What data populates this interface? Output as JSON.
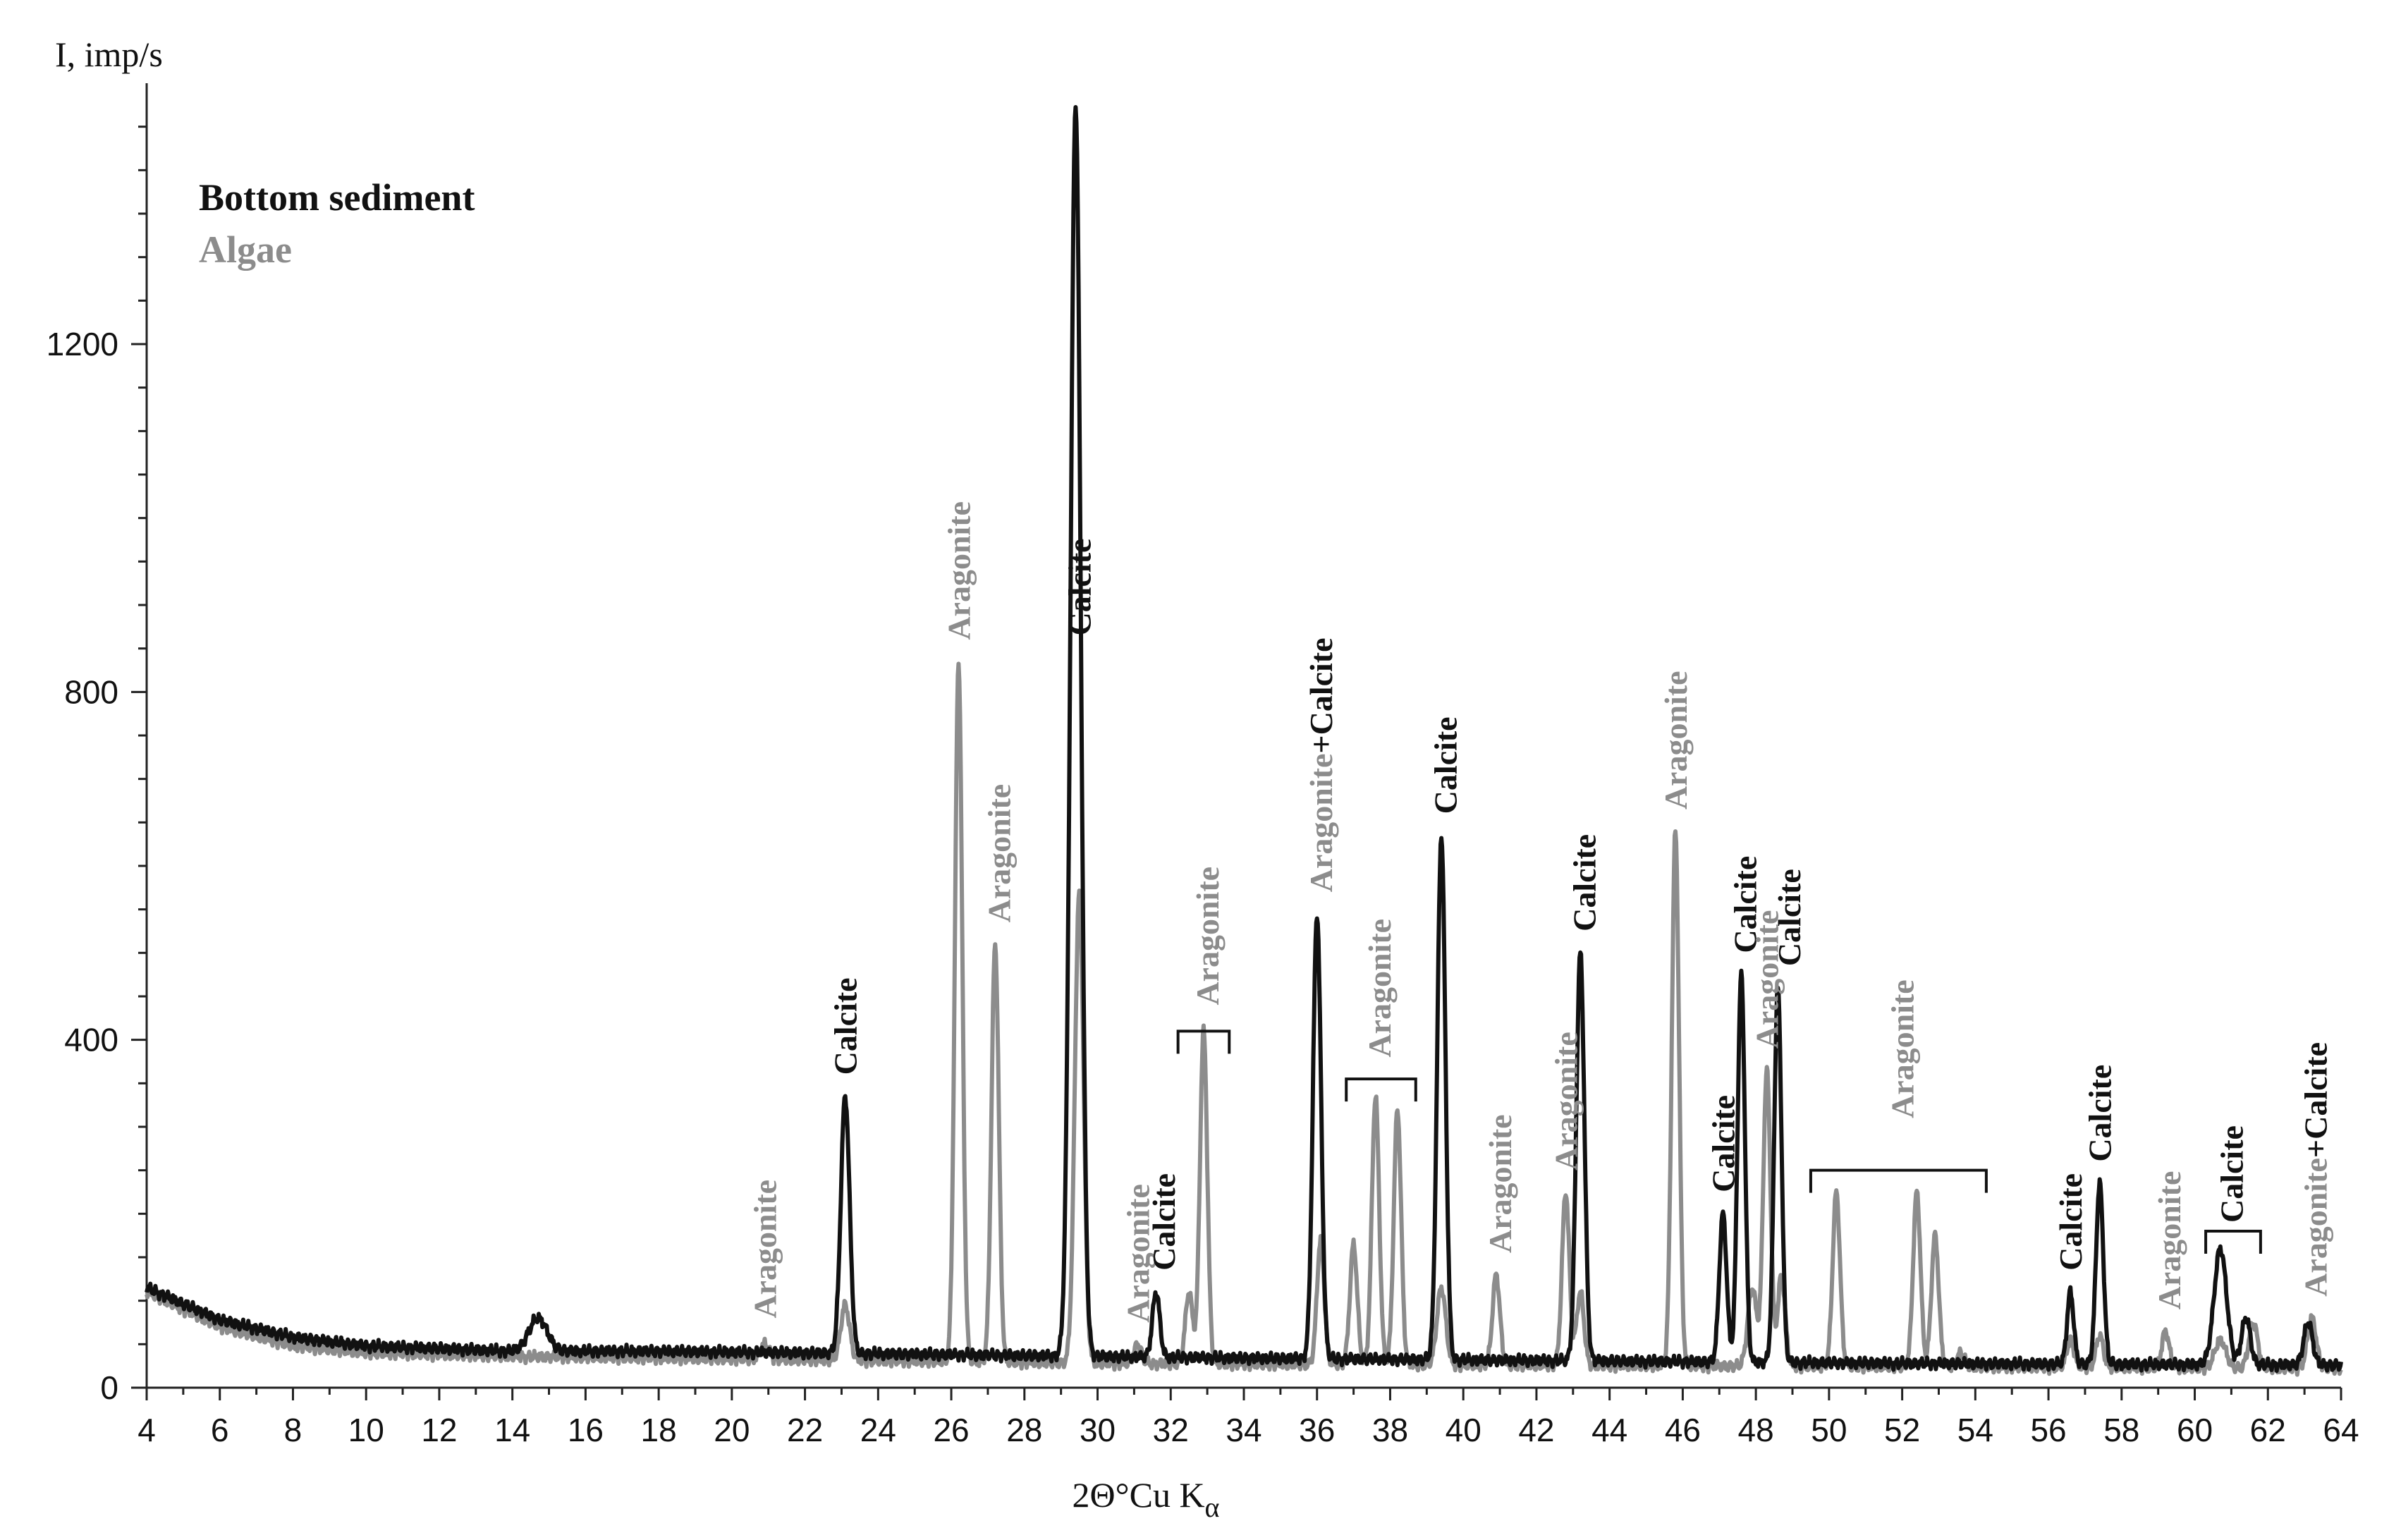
{
  "chart_data": {
    "type": "line",
    "title": "",
    "ylabel": "I, imp/s",
    "xlabel": "2Θ°Cu K",
    "xlabel_subscript": "α",
    "xlim": [
      4,
      64
    ],
    "ylim": [
      0,
      1500
    ],
    "xticks": [
      4,
      6,
      8,
      10,
      12,
      14,
      16,
      18,
      20,
      22,
      24,
      26,
      28,
      30,
      32,
      34,
      36,
      38,
      40,
      42,
      44,
      46,
      48,
      50,
      52,
      54,
      56,
      58,
      60,
      62,
      64
    ],
    "yticks": [
      0,
      400,
      800,
      1200
    ],
    "legend": [
      {
        "name": "Bottom sediment",
        "color": "#111111"
      },
      {
        "name": "Algae",
        "color": "#8c8c8c"
      }
    ],
    "series": [
      {
        "name": "Bottom sediment",
        "color": "#111111",
        "baseline": [
          [
            4,
            115
          ],
          [
            6,
            78
          ],
          [
            8,
            58
          ],
          [
            10,
            48
          ],
          [
            14,
            42
          ],
          [
            18,
            42
          ],
          [
            22,
            40
          ],
          [
            26,
            38
          ],
          [
            30,
            36
          ],
          [
            34,
            34
          ],
          [
            40,
            32
          ],
          [
            46,
            30
          ],
          [
            52,
            28
          ],
          [
            58,
            27
          ],
          [
            64,
            26
          ]
        ],
        "peaks": [
          {
            "x": 14.7,
            "y": 80,
            "w": 0.25
          },
          {
            "x": 23.1,
            "y": 335,
            "w": 0.12
          },
          {
            "x": 29.4,
            "y": 1475,
            "w": 0.14
          },
          {
            "x": 31.6,
            "y": 110,
            "w": 0.1
          },
          {
            "x": 36.0,
            "y": 545,
            "w": 0.11
          },
          {
            "x": 39.4,
            "y": 635,
            "w": 0.11
          },
          {
            "x": 43.2,
            "y": 500,
            "w": 0.11
          },
          {
            "x": 47.1,
            "y": 200,
            "w": 0.1
          },
          {
            "x": 47.6,
            "y": 475,
            "w": 0.1
          },
          {
            "x": 48.6,
            "y": 460,
            "w": 0.1
          },
          {
            "x": 56.6,
            "y": 110,
            "w": 0.09
          },
          {
            "x": 57.4,
            "y": 235,
            "w": 0.1
          },
          {
            "x": 60.7,
            "y": 160,
            "w": 0.17
          },
          {
            "x": 61.4,
            "y": 80,
            "w": 0.12
          },
          {
            "x": 63.1,
            "y": 75,
            "w": 0.12
          }
        ]
      },
      {
        "name": "Algae",
        "color": "#8c8c8c",
        "baseline": [
          [
            4,
            110
          ],
          [
            6,
            70
          ],
          [
            8,
            48
          ],
          [
            10,
            40
          ],
          [
            14,
            36
          ],
          [
            18,
            34
          ],
          [
            22,
            32
          ],
          [
            26,
            30
          ],
          [
            30,
            28
          ],
          [
            34,
            27
          ],
          [
            40,
            26
          ],
          [
            46,
            25
          ],
          [
            52,
            24
          ],
          [
            58,
            23
          ],
          [
            64,
            22
          ]
        ],
        "peaks": [
          {
            "x": 20.9,
            "y": 50,
            "w": 0.12
          },
          {
            "x": 23.1,
            "y": 95,
            "w": 0.12
          },
          {
            "x": 26.2,
            "y": 835,
            "w": 0.1
          },
          {
            "x": 27.2,
            "y": 510,
            "w": 0.1
          },
          {
            "x": 29.5,
            "y": 570,
            "w": 0.12
          },
          {
            "x": 31.1,
            "y": 50,
            "w": 0.1
          },
          {
            "x": 32.5,
            "y": 110,
            "w": 0.1
          },
          {
            "x": 32.9,
            "y": 410,
            "w": 0.1
          },
          {
            "x": 36.1,
            "y": 170,
            "w": 0.1
          },
          {
            "x": 37.0,
            "y": 165,
            "w": 0.1
          },
          {
            "x": 37.6,
            "y": 335,
            "w": 0.1
          },
          {
            "x": 38.2,
            "y": 320,
            "w": 0.1
          },
          {
            "x": 39.4,
            "y": 115,
            "w": 0.12
          },
          {
            "x": 40.9,
            "y": 130,
            "w": 0.1
          },
          {
            "x": 42.8,
            "y": 225,
            "w": 0.1
          },
          {
            "x": 43.2,
            "y": 110,
            "w": 0.1
          },
          {
            "x": 45.8,
            "y": 640,
            "w": 0.1
          },
          {
            "x": 47.9,
            "y": 115,
            "w": 0.12
          },
          {
            "x": 48.3,
            "y": 365,
            "w": 0.1
          },
          {
            "x": 48.7,
            "y": 130,
            "w": 0.1
          },
          {
            "x": 50.2,
            "y": 225,
            "w": 0.1
          },
          {
            "x": 52.4,
            "y": 225,
            "w": 0.1
          },
          {
            "x": 52.9,
            "y": 175,
            "w": 0.1
          },
          {
            "x": 53.6,
            "y": 40,
            "w": 0.1
          },
          {
            "x": 56.6,
            "y": 55,
            "w": 0.1
          },
          {
            "x": 57.4,
            "y": 60,
            "w": 0.1
          },
          {
            "x": 59.2,
            "y": 65,
            "w": 0.1
          },
          {
            "x": 60.7,
            "y": 55,
            "w": 0.15
          },
          {
            "x": 61.6,
            "y": 75,
            "w": 0.12
          },
          {
            "x": 63.2,
            "y": 80,
            "w": 0.12
          }
        ]
      }
    ],
    "annotations": [
      {
        "text": "Aragonite",
        "x": 20.9,
        "y": 70,
        "color": "#8c8c8c"
      },
      {
        "text": "Calcite",
        "x": 23.1,
        "y": 350,
        "color": "#111111"
      },
      {
        "text": "Aragonite",
        "x": 26.2,
        "y": 850,
        "color": "#8c8c8c"
      },
      {
        "text": "Aragonite",
        "x": 27.3,
        "y": 525,
        "color": "#8c8c8c"
      },
      {
        "text": "Calcite",
        "x": 29.5,
        "y": 855,
        "color": "#111111"
      },
      {
        "text": "Aragonite",
        "x": 31.1,
        "y": 65,
        "color": "#8c8c8c"
      },
      {
        "text": "Calcite",
        "x": 31.8,
        "y": 125,
        "color": "#111111"
      },
      {
        "text": "Aragonite",
        "x": 33.0,
        "y": 430,
        "color": "#8c8c8c"
      },
      {
        "text": "Aragonite+Calcite",
        "x": 36.1,
        "y": 560,
        "color": "#111111",
        "split_at": 9,
        "first_color": "#8c8c8c"
      },
      {
        "text": "Aragonite",
        "x": 37.7,
        "y": 370,
        "color": "#8c8c8c"
      },
      {
        "text": "Calcite",
        "x": 39.5,
        "y": 650,
        "color": "#111111"
      },
      {
        "text": "Aragonite",
        "x": 41.0,
        "y": 145,
        "color": "#8c8c8c"
      },
      {
        "text": "Aragonite",
        "x": 42.8,
        "y": 240,
        "color": "#8c8c8c"
      },
      {
        "text": "Calcite",
        "x": 43.3,
        "y": 515,
        "color": "#111111"
      },
      {
        "text": "Aragonite",
        "x": 45.8,
        "y": 655,
        "color": "#8c8c8c"
      },
      {
        "text": "Calcite",
        "x": 47.1,
        "y": 215,
        "color": "#111111"
      },
      {
        "text": "Calcite",
        "x": 47.7,
        "y": 490,
        "color": "#111111"
      },
      {
        "text": "Aragonite",
        "x": 48.3,
        "y": 380,
        "color": "#8c8c8c"
      },
      {
        "text": "Calcite",
        "x": 48.9,
        "y": 475,
        "color": "#111111"
      },
      {
        "text": "Aragonite",
        "x": 52.0,
        "y": 300,
        "color": "#8c8c8c"
      },
      {
        "text": "Calcite",
        "x": 56.6,
        "y": 125,
        "color": "#111111"
      },
      {
        "text": "Calcite",
        "x": 57.4,
        "y": 250,
        "color": "#111111"
      },
      {
        "text": "Aragonite",
        "x": 59.3,
        "y": 80,
        "color": "#8c8c8c"
      },
      {
        "text": "Calcite",
        "x": 61.0,
        "y": 180,
        "color": "#111111"
      },
      {
        "text": "Aragonite+Calcite",
        "x": 63.3,
        "y": 95,
        "color": "#111111",
        "split_at": 9,
        "first_color": "#8c8c8c"
      }
    ],
    "brackets": [
      {
        "x1": 32.2,
        "x2": 33.6,
        "y": 410
      },
      {
        "x1": 36.8,
        "x2": 38.7,
        "y": 355
      },
      {
        "x1": 49.5,
        "x2": 54.3,
        "y": 250
      },
      {
        "x1": 60.3,
        "x2": 61.8,
        "y": 180
      }
    ]
  }
}
